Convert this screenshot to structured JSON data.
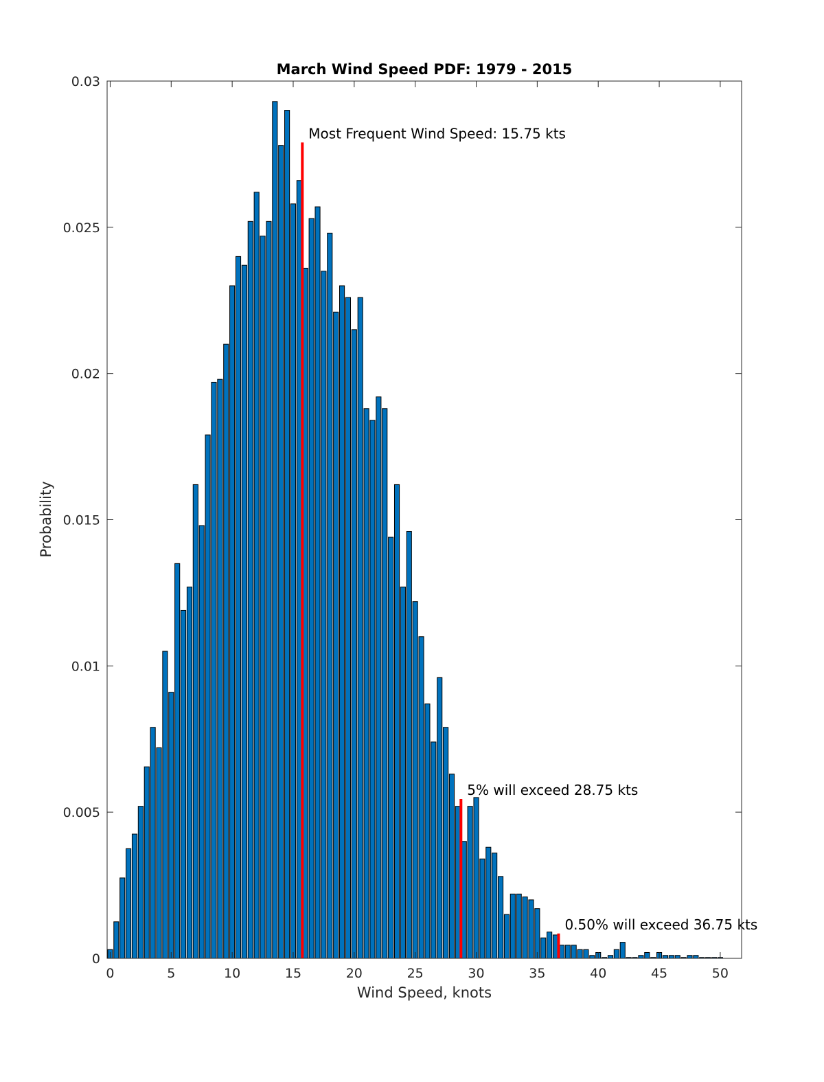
{
  "chart_data": {
    "type": "bar",
    "title": "March Wind Speed PDF: 1979 - 2015",
    "xlabel": "Wind Speed, knots",
    "ylabel": "Probability",
    "xlim": [
      -0.25,
      51.75
    ],
    "ylim": [
      0,
      0.03
    ],
    "bar_width": 0.5,
    "x_ticks": [
      0,
      5,
      10,
      15,
      20,
      25,
      30,
      35,
      40,
      45,
      50
    ],
    "x_tick_labels": [
      "0",
      "5",
      "10",
      "15",
      "20",
      "25",
      "30",
      "35",
      "40",
      "45",
      "50"
    ],
    "y_ticks": [
      0,
      0.005,
      0.01,
      0.015,
      0.02,
      0.025,
      0.03
    ],
    "y_tick_labels": [
      "0",
      "0.005",
      "0.01",
      "0.015",
      "0.02",
      "0.025",
      "0.03"
    ],
    "grid": false,
    "bar_color": "#0072BD",
    "marker_color": "#FF0000",
    "x": [
      0,
      0.5,
      1,
      1.5,
      2,
      2.5,
      3,
      3.5,
      4,
      4.5,
      5,
      5.5,
      6,
      6.5,
      7,
      7.5,
      8,
      8.5,
      9,
      9.5,
      10,
      10.5,
      11,
      11.5,
      12,
      12.5,
      13,
      13.5,
      14,
      14.5,
      15,
      15.5,
      16,
      16.5,
      17,
      17.5,
      18,
      18.5,
      19,
      19.5,
      20,
      20.5,
      21,
      21.5,
      22,
      22.5,
      23,
      23.5,
      24,
      24.5,
      25,
      25.5,
      26,
      26.5,
      27,
      27.5,
      28,
      28.5,
      29,
      29.5,
      30,
      30.5,
      31,
      31.5,
      32,
      32.5,
      33,
      33.5,
      34,
      34.5,
      35,
      35.5,
      36,
      36.5,
      37,
      37.5,
      38,
      38.5,
      39,
      39.5,
      40,
      40.5,
      41,
      41.5,
      42,
      42.5,
      43,
      43.5,
      44,
      44.5,
      45,
      45.5,
      46,
      46.5,
      47,
      47.5,
      48,
      48.5,
      49,
      49.5,
      50
    ],
    "values": [
      0.0003,
      0.00125,
      0.00275,
      0.00375,
      0.00425,
      0.0052,
      0.00655,
      0.0079,
      0.0072,
      0.0105,
      0.0091,
      0.0135,
      0.0119,
      0.0127,
      0.0162,
      0.0148,
      0.0179,
      0.0197,
      0.0198,
      0.021,
      0.023,
      0.024,
      0.0237,
      0.0252,
      0.0262,
      0.0247,
      0.0252,
      0.0293,
      0.0278,
      0.029,
      0.0258,
      0.0266,
      0.0236,
      0.0253,
      0.0257,
      0.0235,
      0.0248,
      0.0221,
      0.023,
      0.0226,
      0.0215,
      0.0226,
      0.0188,
      0.0184,
      0.0192,
      0.0188,
      0.0144,
      0.0162,
      0.0127,
      0.0146,
      0.0122,
      0.011,
      0.0087,
      0.0074,
      0.0096,
      0.0079,
      0.0063,
      0.0052,
      0.004,
      0.0052,
      0.0055,
      0.0034,
      0.0038,
      0.0036,
      0.0028,
      0.0015,
      0.0022,
      0.0022,
      0.0021,
      0.002,
      0.0017,
      0.0007,
      0.0009,
      0.0008,
      0.00045,
      0.00045,
      0.00045,
      0.0003,
      0.0003,
      0.0001,
      0.0002,
      3e-05,
      0.0001,
      0.0003,
      0.00055,
      3e-05,
      3e-05,
      0.0001,
      0.0002,
      3e-05,
      0.0002,
      0.0001,
      0.0001,
      0.0001,
      3e-05,
      0.0001,
      0.0001,
      3e-05,
      3e-05,
      3e-05,
      3e-05
    ],
    "markers": [
      {
        "x": 15.75,
        "y": 0.0279,
        "label": "Most Frequent Wind Speed: 15.75 kts"
      },
      {
        "x": 28.75,
        "y": 0.00545,
        "label": "5% will exceed 28.75 kts"
      },
      {
        "x": 36.75,
        "y": 0.00085,
        "label": "0.50% will exceed 36.75 kts"
      }
    ]
  }
}
